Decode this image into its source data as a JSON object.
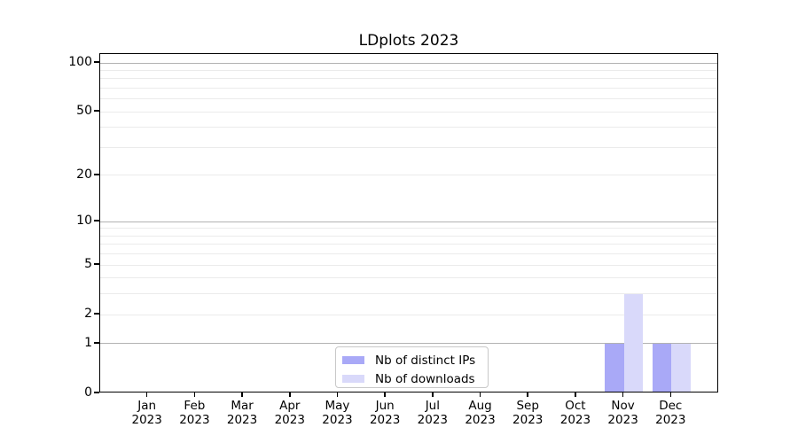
{
  "title": "LDplots 2023",
  "chart_data": {
    "type": "bar",
    "title": "LDplots 2023",
    "categories": [
      "Jan",
      "Feb",
      "Mar",
      "Apr",
      "May",
      "Jun",
      "Jul",
      "Aug",
      "Sep",
      "Oct",
      "Nov",
      "Dec"
    ],
    "category_year": "2023",
    "series": [
      {
        "name": "Nb of distinct IPs",
        "color": "#a9a9f7",
        "values": [
          0,
          0,
          0,
          0,
          0,
          0,
          0,
          0,
          0,
          0,
          1,
          1
        ]
      },
      {
        "name": "Nb of downloads",
        "color": "#d9d9fa",
        "values": [
          0,
          0,
          0,
          0,
          0,
          0,
          0,
          0,
          0,
          0,
          3,
          1
        ]
      }
    ],
    "xlabel": "",
    "ylabel": "",
    "y_scale": "log1p",
    "y_ticks": [
      0,
      1,
      2,
      5,
      10,
      20,
      50,
      100
    ],
    "major_gridlines": [
      1,
      10,
      100
    ],
    "minor_gridlines": [
      2,
      3,
      4,
      5,
      6,
      7,
      8,
      9,
      20,
      30,
      40,
      50,
      60,
      70,
      80,
      90
    ],
    "ylim": [
      0,
      113
    ],
    "grid": true,
    "legend_position": "lower center"
  },
  "colors": {
    "major_grid": "#b2b2b2",
    "minor_grid": "#ebebeb",
    "axis": "#000000",
    "background": "#ffffff",
    "bar_distinct_ips": "#a9a9f7",
    "bar_downloads": "#d9d9fa"
  }
}
